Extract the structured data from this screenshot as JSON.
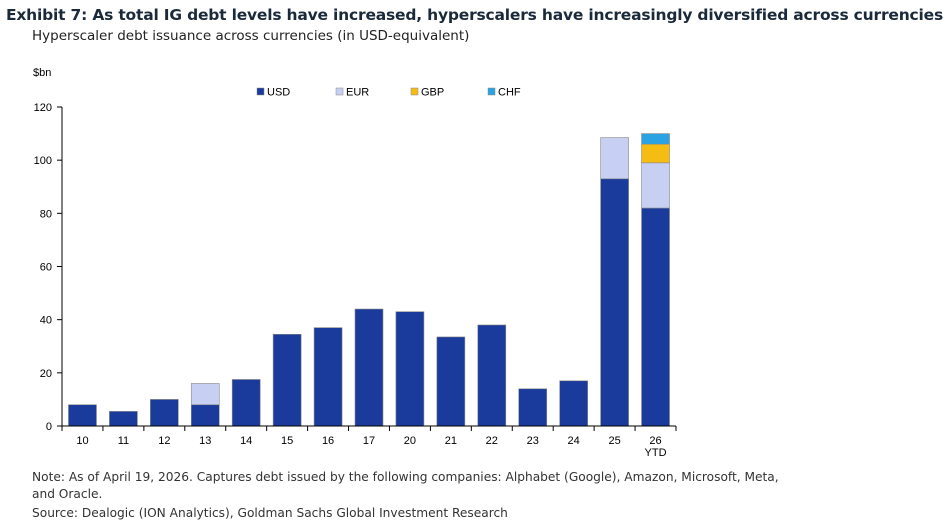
{
  "header": {
    "title": "Exhibit 7: As total IG debt levels have increased, hyperscalers have increasingly diversified across currencies",
    "subtitle": "Hyperscaler debt issuance across currencies (in USD-equivalent)"
  },
  "footer": {
    "note": "Note: As of April 19, 2026. Captures debt issued by the following companies: Alphabet (Google), Amazon, Microsoft, Meta, and Oracle.",
    "source": "Source: Dealogic (ION Analytics), Goldman Sachs Global Investment Research"
  },
  "chart_data": {
    "type": "bar",
    "stacked": true,
    "unit_label": "$bn",
    "categories": [
      "10",
      "11",
      "12",
      "13",
      "14",
      "15",
      "16",
      "17",
      "20",
      "21",
      "22",
      "23",
      "24",
      "25",
      "26\nYTD"
    ],
    "series": [
      {
        "name": "USD",
        "color": "#1a3a9c",
        "values": [
          8,
          5.5,
          10,
          8,
          17.5,
          34.5,
          37,
          44,
          43,
          33.5,
          38,
          14,
          17,
          93,
          82
        ]
      },
      {
        "name": "EUR",
        "color": "#c7d0f2",
        "values": [
          0,
          0,
          0,
          8,
          0,
          0,
          0,
          0,
          0,
          0,
          0,
          0,
          0,
          15.5,
          17
        ]
      },
      {
        "name": "GBP",
        "color": "#f5bd14",
        "values": [
          0,
          0,
          0,
          0,
          0,
          0,
          0,
          0,
          0,
          0,
          0,
          0,
          0,
          0,
          7
        ]
      },
      {
        "name": "CHF",
        "color": "#2ba3e3",
        "values": [
          0,
          0,
          0,
          0,
          0,
          0,
          0,
          0,
          0,
          0,
          0,
          0,
          0,
          0,
          4
        ]
      }
    ],
    "ylim": [
      0,
      120
    ],
    "yticks": [
      0,
      20,
      40,
      60,
      80,
      100,
      120
    ],
    "legend_position": "top-center",
    "grid": false
  }
}
